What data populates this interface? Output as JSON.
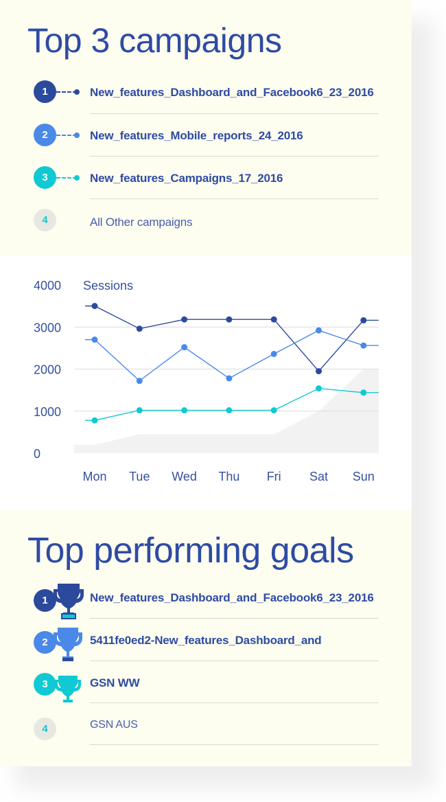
{
  "campaigns": {
    "title": "Top 3 campaigns",
    "items": [
      {
        "rank": "1",
        "name": "New_features_Dashboard_and_Facebook6_23_2016",
        "color": "#2b4a9c"
      },
      {
        "rank": "2",
        "name": "New_features_Mobile_reports_24_2016",
        "color": "#4a89e8"
      },
      {
        "rank": "3",
        "name": "New_features_Campaigns_17_2016",
        "color": "#10c9d3"
      },
      {
        "rank": "4",
        "name": "All Other campaigns",
        "color": "#e8e8e2"
      }
    ]
  },
  "chart_data": {
    "type": "line",
    "title": "",
    "ylabel": "Sessions",
    "xlabel": "",
    "categories": [
      "Mon",
      "Tue",
      "Wed",
      "Thu",
      "Fri",
      "Sat",
      "Sun"
    ],
    "ylim": [
      0,
      4000
    ],
    "yticks": [
      0,
      1000,
      2000,
      3000,
      4000
    ],
    "grid": true,
    "series": [
      {
        "values": [
          3500,
          2960,
          3180,
          3180,
          3180,
          1950,
          3160
        ],
        "color": "#2b4a9c"
      },
      {
        "values": [
          2700,
          1720,
          2520,
          1780,
          2360,
          2920,
          2560
        ],
        "color": "#4a89e8"
      },
      {
        "values": [
          780,
          1020,
          1020,
          1020,
          1020,
          1540,
          1440
        ],
        "color": "#10c9d3"
      }
    ],
    "background_area": {
      "values": [
        200,
        450,
        450,
        450,
        450,
        1000,
        2000
      ],
      "color": "#f2f2f2"
    }
  },
  "goals": {
    "title": "Top performing goals",
    "items": [
      {
        "rank": "1",
        "name": "New_features_Dashboard_and_Facebook6_23_2016",
        "color": "#2b4a9c"
      },
      {
        "rank": "2",
        "name": "5411fe0ed2-New_features_Dashboard_and",
        "color": "#4a89e8"
      },
      {
        "rank": "3",
        "name": "GSN WW",
        "color": "#10c9d3"
      },
      {
        "rank": "4",
        "name": "GSN AUS",
        "color": "#e8e8e2"
      }
    ]
  }
}
